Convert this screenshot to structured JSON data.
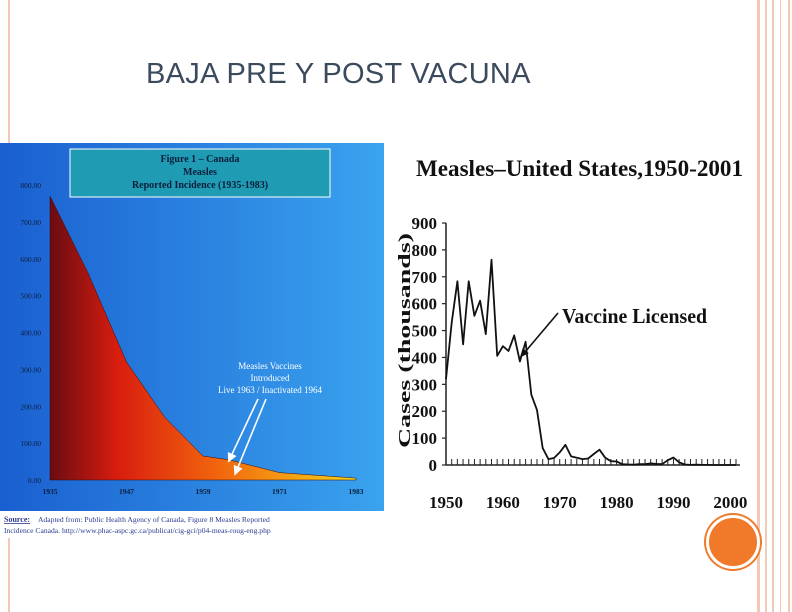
{
  "slide": {
    "title": "BAJA PRE Y POST VACUNA",
    "accent_color": "#f07a2a",
    "frame_color": "#f2c9b4"
  },
  "chart_data": [
    {
      "type": "area",
      "title_lines": [
        "Figure 1 – Canada",
        "Measles",
        "Reported Incidence (1935-1983)"
      ],
      "x_ticks": [
        "1935",
        "1947",
        "1959",
        "1971",
        "1983"
      ],
      "y_ticks": [
        "0.00",
        "100.00",
        "200.00",
        "300.00",
        "400.00",
        "500.00",
        "600.00",
        "700.00",
        "800.00"
      ],
      "ylim": [
        0,
        800
      ],
      "xlim": [
        1935,
        1983
      ],
      "x": [
        1935,
        1941,
        1947,
        1953,
        1959,
        1963,
        1971,
        1983
      ],
      "values": [
        770,
        560,
        320,
        170,
        65,
        55,
        20,
        5
      ],
      "annotation_lines": [
        "Measles Vaccines",
        "Introduced",
        "Live 1963 / Inactivated 1964"
      ],
      "annotation_x": [
        1963,
        1964
      ],
      "source_label": "Source:",
      "source_lines": [
        "Adapted from: Public Health Agency of Canada, Figure 8    Measles Reported",
        "Incidence Canada. http://www.phac-aspc.gc.ca/publicat/cig-gci/p04-meas-roug-eng.php"
      ],
      "background_colors": [
        "#1a5fd0",
        "#3aa3ee"
      ],
      "fill_colors": [
        "#6a0c12",
        "#d81d0f",
        "#f2660e",
        "#f7d21a"
      ]
    },
    {
      "type": "line",
      "title": "Measles–United States,1950-2001",
      "ylabel": "Cases (thousands)",
      "x_ticks": [
        "1950",
        "1960",
        "1970",
        "1980",
        "1990",
        "2000"
      ],
      "y_ticks": [
        "0",
        "100",
        "200",
        "300",
        "400",
        "500",
        "600",
        "700",
        "800",
        "900"
      ],
      "ylim": [
        0,
        900
      ],
      "xlim": [
        1950,
        2001
      ],
      "x": [
        1950,
        1951,
        1952,
        1953,
        1954,
        1955,
        1956,
        1957,
        1958,
        1959,
        1960,
        1961,
        1962,
        1963,
        1964,
        1965,
        1966,
        1967,
        1968,
        1969,
        1970,
        1971,
        1972,
        1973,
        1974,
        1975,
        1976,
        1977,
        1978,
        1979,
        1980,
        1981,
        1982,
        1983,
        1984,
        1985,
        1986,
        1987,
        1988,
        1989,
        1990,
        1991,
        1992,
        1993,
        1994,
        1995,
        1996,
        1997,
        1998,
        1999,
        2000,
        2001
      ],
      "values": [
        319,
        530,
        683,
        449,
        683,
        555,
        611,
        487,
        763,
        406,
        442,
        424,
        482,
        385,
        458,
        262,
        204,
        63,
        22,
        26,
        47,
        75,
        32,
        27,
        22,
        24,
        41,
        57,
        27,
        14,
        13,
        3,
        2,
        1,
        3,
        3,
        6,
        4,
        3,
        18,
        28,
        10,
        2,
        0.3,
        1,
        0.3,
        0.5,
        0.1,
        0.1,
        0.1,
        0.1,
        0.1
      ],
      "annotation": "Vaccine Licensed",
      "annotation_x": 1963
    }
  ]
}
